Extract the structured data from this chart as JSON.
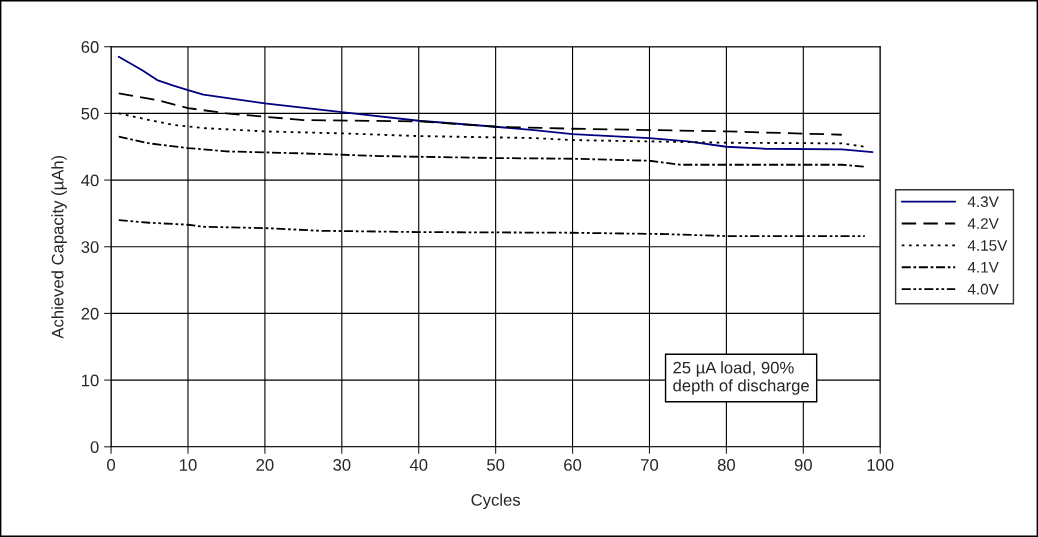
{
  "chart_data": {
    "type": "line",
    "xlabel": "Cycles",
    "ylabel": "Achieved Capacity (µAh)",
    "xlim": [
      0,
      100
    ],
    "ylim": [
      0,
      60
    ],
    "xticks": [
      0,
      10,
      20,
      30,
      40,
      50,
      60,
      70,
      80,
      90,
      100
    ],
    "yticks": [
      0,
      10,
      20,
      30,
      40,
      50,
      60
    ],
    "grid": true,
    "legend": "right",
    "marker": "none",
    "annotations": [
      "25 µA load, 90%\ndepth of discharge"
    ],
    "series": [
      {
        "name": "4.3V",
        "color": "#000080",
        "line_style": "solid",
        "x": [
          1,
          4,
          6,
          8,
          10,
          12,
          20,
          30,
          40,
          50,
          55,
          60,
          70,
          75,
          80,
          85,
          95,
          99
        ],
        "values": [
          58.5,
          56.5,
          55,
          54.2,
          53.5,
          52.8,
          51.5,
          50.2,
          48.9,
          48,
          47.5,
          46.9,
          46.3,
          45.8,
          45,
          44.7,
          44.6,
          44.2
        ]
      },
      {
        "name": "4.2V",
        "color": "#000000",
        "line_style": "dashed",
        "x": [
          1,
          6,
          10,
          15,
          20,
          25,
          40,
          50,
          60,
          70,
          80,
          95
        ],
        "values": [
          53,
          52,
          50.8,
          50,
          49.5,
          49,
          48.8,
          48,
          47.7,
          47.5,
          47.3,
          46.8
        ]
      },
      {
        "name": "4.15V",
        "color": "#000000",
        "line_style": "dotted",
        "x": [
          1,
          5,
          8,
          12,
          20,
          30,
          40,
          50,
          55,
          60,
          80,
          95,
          98
        ],
        "values": [
          50,
          49,
          48.3,
          47.8,
          47.3,
          47,
          46.6,
          46.4,
          46.3,
          46,
          45.6,
          45.5,
          45
        ]
      },
      {
        "name": "4.1V",
        "color": "#000000",
        "line_style": "dashdot",
        "x": [
          1,
          5,
          10,
          15,
          25,
          35,
          50,
          60,
          70,
          74,
          80,
          95,
          98
        ],
        "values": [
          46.5,
          45.5,
          44.8,
          44.3,
          44,
          43.6,
          43.3,
          43.2,
          42.9,
          42.3,
          42.3,
          42.3,
          42
        ]
      },
      {
        "name": "4.0V",
        "color": "#000000",
        "line_style": "dashdotdot",
        "x": [
          1,
          5,
          10,
          12,
          20,
          27,
          40,
          60,
          72,
          80,
          98
        ],
        "values": [
          34,
          33.6,
          33.3,
          33,
          32.8,
          32.4,
          32.2,
          32.1,
          31.9,
          31.6,
          31.6
        ]
      }
    ]
  }
}
